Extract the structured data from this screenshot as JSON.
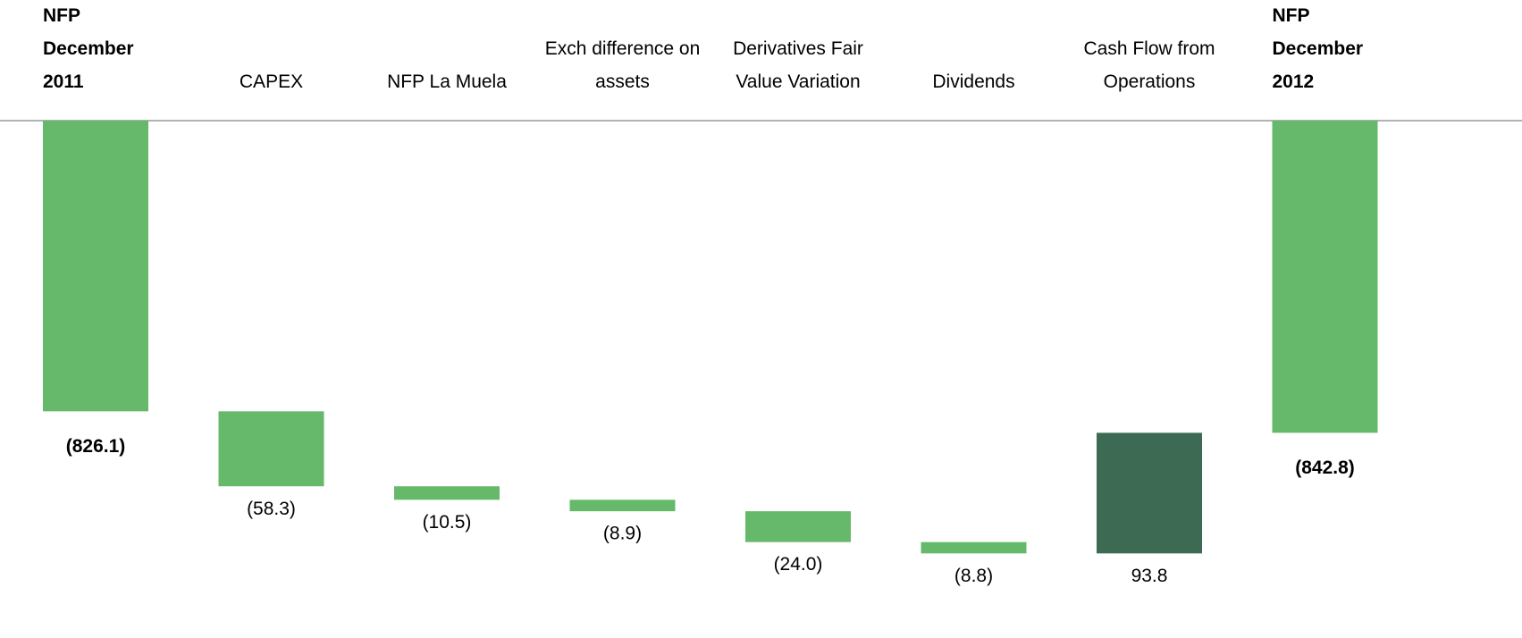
{
  "chart_data": {
    "type": "waterfall",
    "categories": [
      "NFP December 2011",
      "CAPEX",
      "NFP La Muela",
      "Exch difference on assets",
      "Derivatives Fair Value Variation",
      "Dividends",
      "Cash Flow from Operations",
      "NFP December 2012"
    ],
    "values": [
      -826.1,
      -58.3,
      -10.5,
      -8.9,
      -24.0,
      -8.8,
      93.8,
      -842.8
    ],
    "value_labels": [
      "(826.1)",
      "(58.3)",
      "(10.5)",
      "(8.9)",
      "(24.0)",
      "(8.8)",
      "93.8",
      "(842.8)"
    ],
    "color": "#66b96a",
    "positive_color": "#3c6a52",
    "ylim": [
      -960,
      -600
    ]
  }
}
